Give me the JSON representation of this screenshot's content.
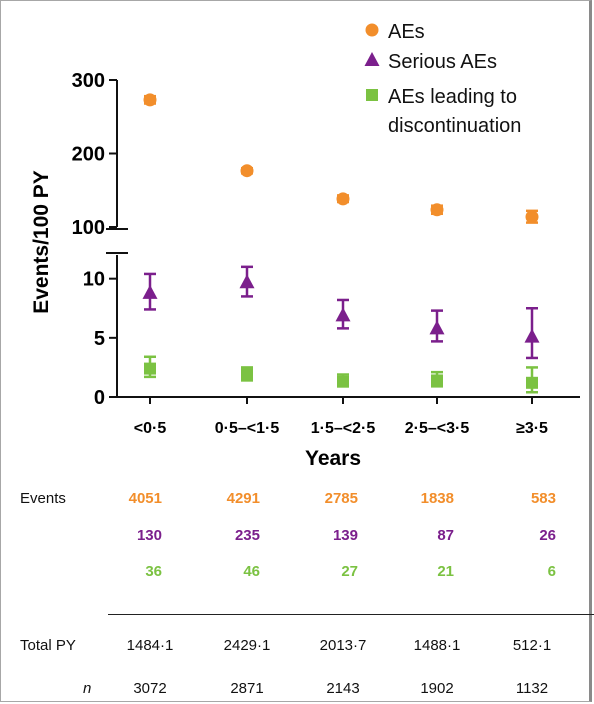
{
  "chart_data": {
    "type": "scatter",
    "xlabel": "Years",
    "ylabel": "Events/100 PY",
    "categories": [
      "<0·5",
      "0·5–<1·5",
      "1·5–<2·5",
      "2·5–<3·5",
      "≥3·5"
    ],
    "y_axis": {
      "broken": true,
      "upper_segment": {
        "range": [
          100,
          300
        ],
        "ticks": [
          "100",
          "200",
          "300"
        ]
      },
      "lower_segment": {
        "range": [
          0,
          12
        ],
        "ticks": [
          "0",
          "5",
          "10"
        ]
      }
    },
    "grid": false,
    "legend_position": "top-right",
    "series": [
      {
        "name": "AEs",
        "marker": "circle",
        "color": "#F28E2B",
        "values": [
          273,
          176.6,
          138.3,
          123.5,
          113.8
        ],
        "ci_low": [
          268,
          173,
          134,
          118,
          106
        ],
        "ci_high": [
          278,
          180,
          143,
          129,
          122
        ]
      },
      {
        "name": "Serious AEs",
        "marker": "triangle",
        "color": "#7B1F8C",
        "values": [
          8.8,
          9.7,
          6.9,
          5.8,
          5.1
        ],
        "ci_low": [
          7.4,
          8.5,
          5.8,
          4.7,
          3.3
        ],
        "ci_high": [
          10.4,
          11.0,
          8.2,
          7.3,
          7.5
        ]
      },
      {
        "name": "AEs leading to\ndiscontinuation",
        "marker": "square",
        "color": "#7BC242",
        "values": [
          2.4,
          1.9,
          1.3,
          1.4,
          1.2
        ],
        "ci_low": [
          1.7,
          1.4,
          0.9,
          0.9,
          0.4
        ],
        "ci_high": [
          3.4,
          2.5,
          1.9,
          2.1,
          2.5
        ]
      }
    ]
  },
  "table": {
    "events_label": "Events",
    "total_py_label": "Total PY",
    "n_label": "n",
    "events_aes": [
      "4051",
      "4291",
      "2785",
      "1838",
      "583"
    ],
    "events_serious": [
      "130",
      "235",
      "139",
      "87",
      "26"
    ],
    "events_discontinuation": [
      "36",
      "46",
      "27",
      "21",
      "6"
    ],
    "total_py": [
      "1484·1",
      "2429·1",
      "2013·7",
      "1488·1",
      "512·1"
    ],
    "n": [
      "3072",
      "2871",
      "2143",
      "1902",
      "1132"
    ]
  }
}
